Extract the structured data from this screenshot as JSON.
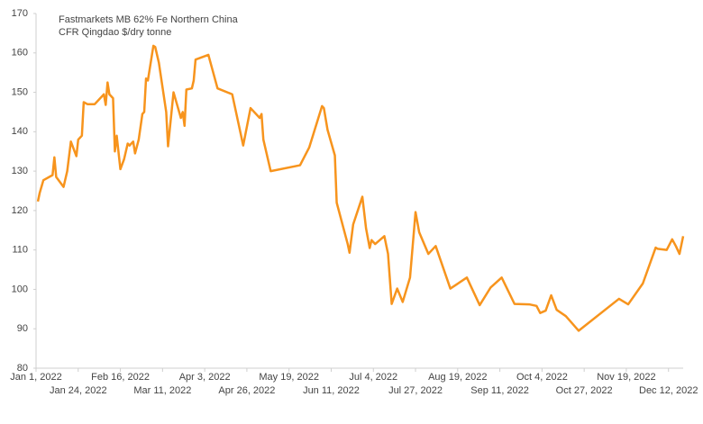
{
  "chart_data": {
    "type": "line",
    "title": "Fastmarkets MB 62% Fe Northern China",
    "subtitle": "CFR Qingdao $/dry tonne",
    "x": [
      "2022-01-02",
      "2022-01-03",
      "2022-01-05",
      "2022-01-10",
      "2022-01-11",
      "2022-01-12",
      "2022-01-16",
      "2022-01-18",
      "2022-01-20",
      "2022-01-23",
      "2022-01-24",
      "2022-01-26",
      "2022-01-27",
      "2022-01-29",
      "2022-02-02",
      "2022-02-07",
      "2022-02-08",
      "2022-02-09",
      "2022-02-10",
      "2022-02-12",
      "2022-02-13",
      "2022-02-14",
      "2022-02-16",
      "2022-02-18",
      "2022-02-20",
      "2022-02-21",
      "2022-02-23",
      "2022-02-24",
      "2022-02-26",
      "2022-02-28",
      "2022-03-01",
      "2022-03-02",
      "2022-03-03",
      "2022-03-06",
      "2022-03-07",
      "2022-03-09",
      "2022-03-13",
      "2022-03-14",
      "2022-03-17",
      "2022-03-21",
      "2022-03-22",
      "2022-03-23",
      "2022-03-24",
      "2022-03-27",
      "2022-03-28",
      "2022-03-29",
      "2022-04-05",
      "2022-04-10",
      "2022-04-18",
      "2022-04-24",
      "2022-04-28",
      "2022-05-03",
      "2022-05-04",
      "2022-05-05",
      "2022-05-09",
      "2022-05-25",
      "2022-05-30",
      "2022-06-03",
      "2022-06-06",
      "2022-06-07",
      "2022-06-09",
      "2022-06-13",
      "2022-06-14",
      "2022-06-20",
      "2022-06-21",
      "2022-06-23",
      "2022-06-28",
      "2022-06-30",
      "2022-07-02",
      "2022-07-03",
      "2022-07-05",
      "2022-07-10",
      "2022-07-12",
      "2022-07-14",
      "2022-07-17",
      "2022-07-20",
      "2022-07-24",
      "2022-07-27",
      "2022-07-29",
      "2022-08-03",
      "2022-08-07",
      "2022-08-15",
      "2022-08-24",
      "2022-08-28",
      "2022-08-31",
      "2022-09-06",
      "2022-09-12",
      "2022-09-19",
      "2022-09-27",
      "2022-10-01",
      "2022-10-03",
      "2022-10-06",
      "2022-10-09",
      "2022-10-12",
      "2022-10-17",
      "2022-10-24",
      "2022-11-15",
      "2022-11-20",
      "2022-11-28",
      "2022-12-05",
      "2022-12-06",
      "2022-12-11",
      "2022-12-14",
      "2022-12-16",
      "2022-12-18",
      "2022-12-20"
    ],
    "series": [
      {
        "name": "Fastmarkets MB 62% Fe Northern China",
        "color": "#f7941d",
        "values": [
          122.3,
          124.5,
          127.7,
          129,
          133.5,
          128.5,
          126,
          130,
          137.5,
          133.8,
          138,
          139,
          147.5,
          147,
          147,
          149.5,
          146.8,
          152.5,
          149.5,
          148.5,
          135,
          139,
          130.5,
          133,
          137,
          136.5,
          137.5,
          134.5,
          138,
          144.5,
          145,
          153.5,
          153,
          161.8,
          161.5,
          157.5,
          145,
          136.3,
          150,
          143.5,
          145,
          141.5,
          150.7,
          151,
          153,
          158.3,
          159.5,
          151,
          149.5,
          136.5,
          146,
          143.5,
          144.5,
          138,
          130,
          131.5,
          136,
          142,
          146.5,
          146,
          140.5,
          134,
          122,
          111.5,
          109.3,
          116.5,
          123.5,
          115.5,
          110.5,
          112.5,
          111.5,
          113.5,
          109,
          96.3,
          100.2,
          96.8,
          103,
          119.6,
          114.5,
          109,
          111,
          100.2,
          103,
          99,
          96,
          100.5,
          103,
          96.3,
          96.2,
          95.8,
          94,
          94.6,
          98.5,
          94.8,
          93.2,
          89.5,
          97.6,
          96.2,
          101.5,
          110.6,
          110.3,
          110,
          112.7,
          111,
          109,
          113.5
        ]
      }
    ],
    "xlim": [
      "2022-01-01",
      "2022-12-20"
    ],
    "xticks": [
      {
        "value": "2022-01-01",
        "label": "Jan 1, 2022"
      },
      {
        "value": "2022-01-24",
        "label": "Jan 24, 2022"
      },
      {
        "value": "2022-02-16",
        "label": "Feb 16, 2022"
      },
      {
        "value": "2022-03-11",
        "label": "Mar 11, 2022"
      },
      {
        "value": "2022-04-03",
        "label": "Apr 3, 2022"
      },
      {
        "value": "2022-04-26",
        "label": "Apr 26, 2022"
      },
      {
        "value": "2022-05-19",
        "label": "May 19, 2022"
      },
      {
        "value": "2022-06-11",
        "label": "Jun 11, 2022"
      },
      {
        "value": "2022-07-04",
        "label": "Jul 4, 2022"
      },
      {
        "value": "2022-07-27",
        "label": "Jul 27, 2022"
      },
      {
        "value": "2022-08-19",
        "label": "Aug 19, 2022"
      },
      {
        "value": "2022-09-11",
        "label": "Sep 11, 2022"
      },
      {
        "value": "2022-10-04",
        "label": "Oct 4, 2022"
      },
      {
        "value": "2022-10-27",
        "label": "Oct 27, 2022"
      },
      {
        "value": "2022-11-19",
        "label": "Nov 19, 2022"
      },
      {
        "value": "2022-12-12",
        "label": "Dec 12, 2022"
      }
    ],
    "ylim": [
      80,
      170
    ],
    "yticks": [
      80,
      90,
      100,
      110,
      120,
      130,
      140,
      150,
      160,
      170
    ],
    "grid": false
  }
}
